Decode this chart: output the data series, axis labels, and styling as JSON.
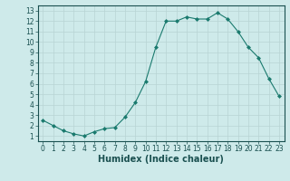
{
  "x": [
    0,
    1,
    2,
    3,
    4,
    5,
    6,
    7,
    8,
    9,
    10,
    11,
    12,
    13,
    14,
    15,
    16,
    17,
    18,
    19,
    20,
    21,
    22,
    23
  ],
  "y": [
    2.5,
    2.0,
    1.5,
    1.2,
    1.0,
    1.4,
    1.7,
    1.8,
    2.8,
    4.2,
    6.2,
    9.5,
    12.0,
    12.0,
    12.4,
    12.2,
    12.2,
    12.8,
    12.2,
    11.0,
    9.5,
    8.5,
    6.5,
    4.8
  ],
  "line_color": "#1a7a6e",
  "marker": "D",
  "marker_size": 2.0,
  "bg_color": "#ceeaea",
  "grid_color": "#b8d4d4",
  "xlabel": "Humidex (Indice chaleur)",
  "xlim": [
    -0.5,
    23.5
  ],
  "ylim": [
    0.5,
    13.5
  ],
  "yticks": [
    1,
    2,
    3,
    4,
    5,
    6,
    7,
    8,
    9,
    10,
    11,
    12,
    13
  ],
  "xticks": [
    0,
    1,
    2,
    3,
    4,
    5,
    6,
    7,
    8,
    9,
    10,
    11,
    12,
    13,
    14,
    15,
    16,
    17,
    18,
    19,
    20,
    21,
    22,
    23
  ],
  "tick_label_fontsize": 5.5,
  "xlabel_fontsize": 7.0,
  "linewidth": 0.8,
  "markeredgewidth": 0.5
}
